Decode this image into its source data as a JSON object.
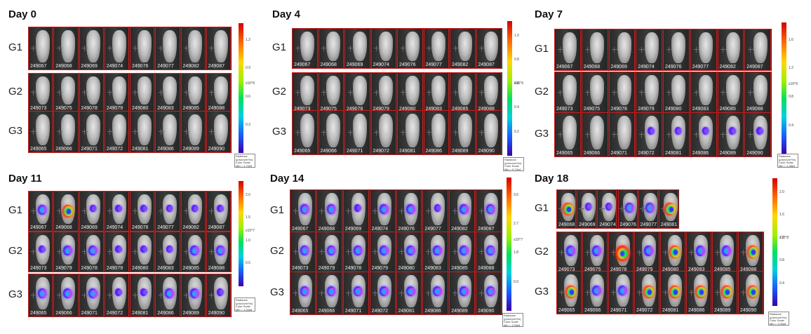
{
  "panels": [
    {
      "title": "Day 0",
      "groups": [
        {
          "label": "G1",
          "ids": [
            "249067",
            "249068",
            "249069",
            "249074",
            "249076",
            "249077",
            "249082",
            "249087"
          ],
          "signal": []
        },
        {
          "label": "G2",
          "ids": [
            "249073",
            "249075",
            "249078",
            "249079",
            "249080",
            "249083",
            "249085",
            "249088"
          ],
          "signal": []
        },
        {
          "label": "G3",
          "ids": [
            "249065",
            "249066",
            "249071",
            "249072",
            "249081",
            "249086",
            "249089",
            "249090"
          ],
          "signal": []
        }
      ],
      "colorbar": {
        "ticks": [
          "1.2",
          "0.9",
          "0.6",
          "0.3"
        ],
        "unit": "x10^6",
        "legend": [
          "Radiance",
          "(p/sec/cm²/sr)",
          "Color Scale",
          "Min = 1.70e5",
          "Max = 1.40e6"
        ]
      }
    },
    {
      "title": "Day 4",
      "groups": [
        {
          "label": "G1",
          "ids": [
            "249067",
            "249068",
            "249069",
            "249074",
            "249076",
            "249077",
            "249082",
            "249087"
          ],
          "signal": []
        },
        {
          "label": "G2",
          "ids": [
            "249073",
            "249075",
            "249078",
            "249079",
            "249080",
            "249083",
            "249085",
            "249088"
          ],
          "signal": []
        },
        {
          "label": "G3",
          "ids": [
            "249065",
            "249066",
            "249071",
            "249072",
            "249081",
            "249086",
            "249089",
            "249090"
          ],
          "signal": []
        }
      ],
      "colorbar": {
        "ticks": [
          "1.0",
          "0.8",
          "0.6",
          "0.4",
          "0.2"
        ],
        "unit": "x10^6",
        "legend": [
          "Radiance",
          "(p/sec/cm²/sr)",
          "Color Scale",
          "Min = 9.72e4",
          "Max = 1.10e6"
        ]
      }
    },
    {
      "title": "Day 7",
      "groups": [
        {
          "label": "G1",
          "ids": [
            "249067",
            "249068",
            "249069",
            "249074",
            "249076",
            "249077",
            "249082",
            "249087"
          ],
          "signal": [
            0,
            0,
            0,
            0,
            0,
            0,
            0,
            0
          ]
        },
        {
          "label": "G2",
          "ids": [
            "249073",
            "249075",
            "249078",
            "249079",
            "249080",
            "249083",
            "249085",
            "249088"
          ],
          "signal": [
            0,
            0,
            0,
            0,
            0,
            0,
            0,
            0
          ]
        },
        {
          "label": "G3",
          "ids": [
            "249065",
            "249066",
            "249071",
            "249072",
            "249081",
            "249086",
            "249089",
            "249090"
          ],
          "signal": [
            0,
            0,
            0,
            1,
            1,
            1,
            1,
            1
          ]
        }
      ],
      "colorbar": {
        "ticks": [
          "1.6",
          "1.2",
          "0.8",
          "0.4"
        ],
        "unit": "x10^6",
        "legend": [
          "Radiance",
          "(p/sec/cm²/sr)",
          "Color Scale",
          "Min = 1.38e4",
          "Max = 1.40e6"
        ]
      }
    },
    {
      "title": "Day 11",
      "groups": [
        {
          "label": "G1",
          "ids": [
            "249067",
            "249068",
            "249069",
            "249074",
            "249076",
            "249077",
            "249082",
            "249087"
          ],
          "signal": [
            2,
            3,
            1,
            1,
            1,
            1,
            1,
            1
          ]
        },
        {
          "label": "G2",
          "ids": [
            "249073",
            "249079",
            "249078",
            "249079",
            "249080",
            "249083",
            "249085",
            "249088"
          ],
          "signal": [
            1,
            2,
            2,
            1,
            1,
            1,
            2,
            2
          ]
        },
        {
          "label": "G3",
          "ids": [
            "249065",
            "249066",
            "249071",
            "249072",
            "249081",
            "249086",
            "249089",
            "249090"
          ],
          "signal": [
            2,
            2,
            2,
            1,
            1,
            2,
            2,
            1
          ]
        }
      ],
      "colorbar": {
        "ticks": [
          "2.0",
          "1.5",
          "1.0",
          "0.5"
        ],
        "unit": "x10^7",
        "legend": [
          "Radiance",
          "(p/sec/cm²/sr)",
          "Color Scale",
          "Min = 1.00e6",
          "Max = 2.00e7"
        ]
      }
    },
    {
      "title": "Day 14",
      "groups": [
        {
          "label": "G1",
          "ids": [
            "249067",
            "249068",
            "249069",
            "249074",
            "249076",
            "249077",
            "249082",
            "249087"
          ],
          "signal": [
            2,
            2,
            1,
            2,
            2,
            1,
            2,
            2
          ]
        },
        {
          "label": "G2",
          "ids": [
            "249073",
            "249079",
            "249078",
            "249079",
            "249080",
            "249083",
            "249085",
            "249088"
          ],
          "signal": [
            2,
            2,
            2,
            2,
            2,
            2,
            2,
            2
          ]
        },
        {
          "label": "G3",
          "ids": [
            "249065",
            "249066",
            "249071",
            "249072",
            "249081",
            "249086",
            "249089",
            "249090"
          ],
          "signal": [
            2,
            2,
            2,
            2,
            2,
            2,
            2,
            2
          ]
        }
      ],
      "colorbar": {
        "ticks": [
          "3.6",
          "2.7",
          "1.8",
          "0.9"
        ],
        "unit": "x10^7",
        "legend": [
          "Radiance",
          "(p/sec/cm²/sr)",
          "Color Scale",
          "Min = 1.00e6",
          "Max = 3.50e7"
        ]
      }
    },
    {
      "title": "Day 18",
      "groups": [
        {
          "label": "G1",
          "ids": [
            "249068",
            "249069",
            "249074",
            "249076",
            "249077",
            "249081"
          ],
          "signal": [
            3,
            1,
            1,
            2,
            2,
            3
          ]
        },
        {
          "label": "G2",
          "ids": [
            "249073",
            "249075",
            "249078",
            "249079",
            "249080",
            "249083",
            "249085",
            "249088"
          ],
          "signal": [
            2,
            2,
            4,
            2,
            3,
            2,
            2,
            3
          ]
        },
        {
          "label": "G3",
          "ids": [
            "249065",
            "249066",
            "249071",
            "249072",
            "249081",
            "249086",
            "249089",
            "249090"
          ],
          "signal": [
            3,
            2,
            2,
            3,
            3,
            3,
            3,
            3
          ]
        }
      ],
      "colorbar": {
        "ticks": [
          "2.0",
          "1.6",
          "1.2",
          "0.8",
          "0.4"
        ],
        "unit": "x10^8",
        "legend": [
          "Radiance",
          "(p/sec/cm²/sr)",
          "Color Scale",
          "Min = 1.00e8",
          "Max = 2.00e8"
        ]
      }
    }
  ]
}
